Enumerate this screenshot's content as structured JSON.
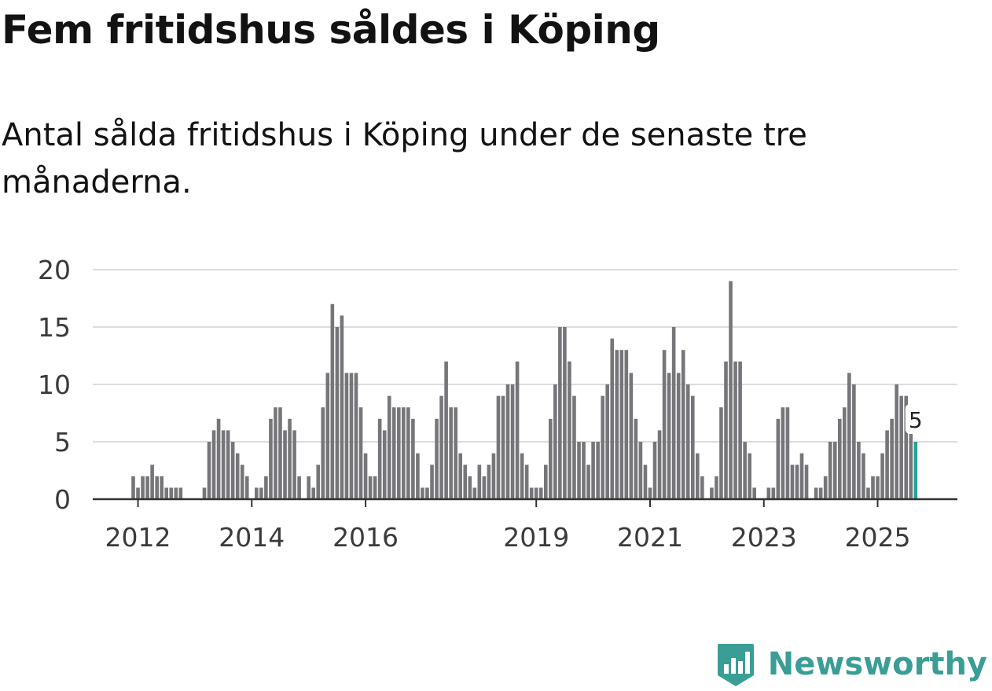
{
  "title": "Fem fritidshus såldes i Köping",
  "subtitle": "Antal sålda fritidshus i Köping under de senaste tre månaderna.",
  "brand": {
    "name": "Newsworthy",
    "color": "#3a9e96"
  },
  "chart_data": {
    "type": "bar",
    "ylim": [
      0,
      20
    ],
    "yticks": [
      0,
      5,
      10,
      15,
      20
    ],
    "xtick_labels": [
      "2012",
      "2014",
      "2016",
      "2019",
      "2021",
      "2023",
      "2025"
    ],
    "xticks": [
      2012,
      2014,
      2016,
      2019,
      2021,
      2023,
      2025
    ],
    "grid": true,
    "bar_color": "#76767a",
    "highlight_color": "#21a397",
    "annotation": {
      "label": "5"
    },
    "values": [
      2,
      1,
      2,
      2,
      3,
      2,
      2,
      1,
      1,
      1,
      1,
      0,
      0,
      0,
      0,
      1,
      5,
      6,
      7,
      6,
      6,
      5,
      4,
      3,
      2,
      0,
      1,
      1,
      2,
      7,
      8,
      8,
      6,
      7,
      6,
      2,
      0,
      2,
      1,
      3,
      8,
      11,
      17,
      15,
      16,
      11,
      11,
      11,
      8,
      4,
      2,
      2,
      7,
      6,
      9,
      8,
      8,
      8,
      8,
      7,
      4,
      1,
      1,
      3,
      7,
      9,
      12,
      8,
      8,
      4,
      3,
      2,
      1,
      3,
      2,
      3,
      4,
      9,
      9,
      10,
      10,
      12,
      4,
      3,
      1,
      1,
      1,
      3,
      7,
      10,
      15,
      15,
      12,
      9,
      5,
      5,
      3,
      5,
      5,
      9,
      10,
      14,
      13,
      13,
      13,
      11,
      7,
      5,
      3,
      1,
      5,
      6,
      13,
      11,
      15,
      11,
      13,
      10,
      9,
      4,
      2,
      0,
      1,
      2,
      8,
      12,
      19,
      12,
      12,
      5,
      4,
      1,
      0,
      0,
      1,
      1,
      7,
      8,
      8,
      3,
      3,
      4,
      3,
      0,
      1,
      1,
      2,
      5,
      5,
      7,
      8,
      11,
      10,
      5,
      4,
      1,
      2,
      2,
      4,
      6,
      7,
      10,
      9,
      9,
      6,
      5
    ]
  }
}
